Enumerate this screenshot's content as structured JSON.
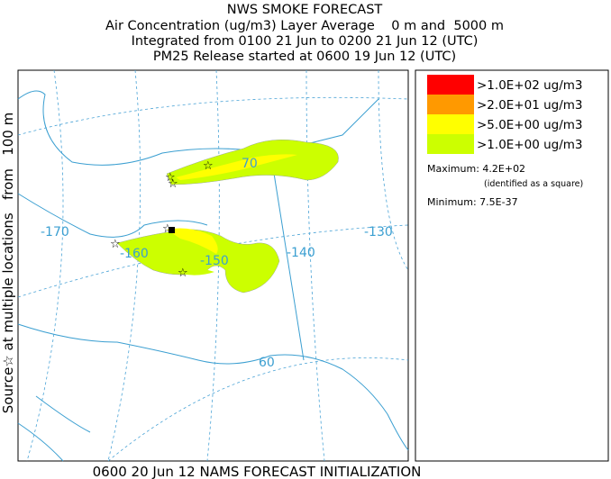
{
  "header": {
    "title": "NWS SMOKE FORECAST",
    "lines": [
      "Air Concentration (ug/m3) Layer Average    0 m and  5000 m",
      "Integrated from 0100 21 Jun to 0200 21 Jun 12 (UTC)",
      "PM25 Release started at 0600 19 Jun 12 (UTC)"
    ]
  },
  "side_label": "Source☆ at multiple locations   from   100 m",
  "footer": "0600 20 Jun 12 NAMS FORECAST INITIALIZATION",
  "map": {
    "labels": [
      "-170",
      "-160",
      "-150",
      "-140",
      "-130",
      "70",
      "60"
    ]
  },
  "legend": {
    "items": [
      {
        "label": ">1.0E+02 ug/m3",
        "color": "#ff0000"
      },
      {
        "label": ">2.0E+01 ug/m3",
        "color": "#ff9900"
      },
      {
        "label": ">5.0E+00 ug/m3",
        "color": "#ffff00"
      },
      {
        "label": ">1.0E+00 ug/m3",
        "color": "#ccff00"
      }
    ],
    "maximum": "Maximum: 4.2E+02",
    "maximum_note": "(identified as a square)",
    "minimum": "Minimum: 7.5E-37"
  }
}
